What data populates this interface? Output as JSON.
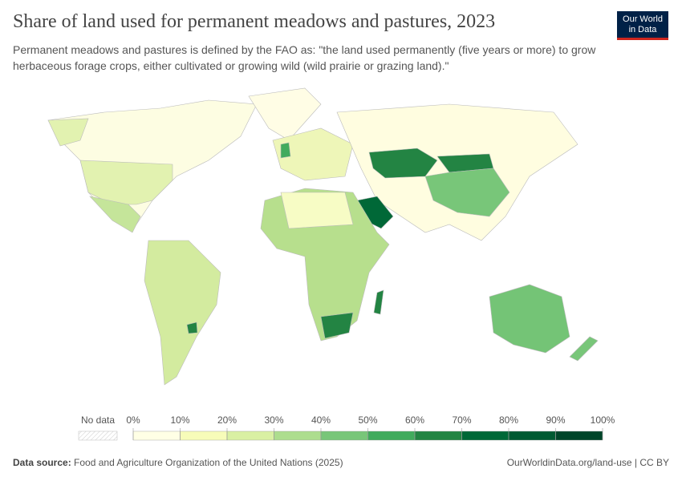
{
  "header": {
    "title": "Share of land used for permanent meadows and pastures, 2023",
    "subtitle": "Permanent meadows and pastures is defined by the FAO as: \"the land used permanently (five years or more) to grow herbaceous forage crops, either cultivated or growing wild (wild prairie or grazing land).\"",
    "logo": [
      "Our World",
      "in Data"
    ]
  },
  "legend": {
    "no_data": "No data",
    "ticks": [
      {
        "value": 0,
        "label": "0%"
      },
      {
        "value": 10,
        "label": "10%"
      },
      {
        "value": 20,
        "label": "20%"
      },
      {
        "value": 30,
        "label": "30%"
      },
      {
        "value": 40,
        "label": "40%"
      },
      {
        "value": 50,
        "label": "50%"
      },
      {
        "value": 60,
        "label": "60%"
      },
      {
        "value": 70,
        "label": "70%"
      },
      {
        "value": 80,
        "label": "80%"
      },
      {
        "value": 90,
        "label": "90%"
      },
      {
        "value": 100,
        "label": "100%"
      }
    ],
    "colors": [
      "#ffffe5",
      "#f7fcb9",
      "#d9f0a3",
      "#addd8e",
      "#78c679",
      "#41ab5d",
      "#238443",
      "#006837",
      "#005a32",
      "#004529"
    ]
  },
  "footer": {
    "source_label": "Data source:",
    "source": "Food and Agriculture Organization of the United Nations (2025)",
    "url": "OurWorldinData.org/land-use | CC BY"
  }
}
